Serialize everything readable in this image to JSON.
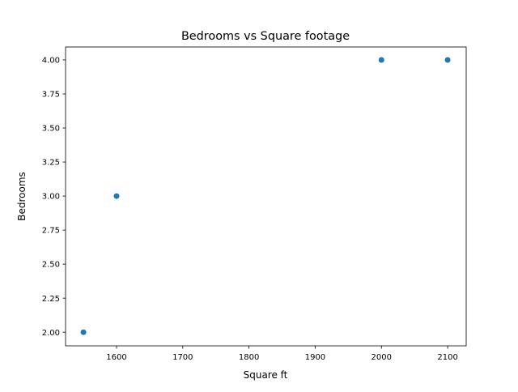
{
  "chart_data": {
    "type": "scatter",
    "title": "Bedrooms vs Square footage",
    "xlabel": "Square ft",
    "ylabel": "Bedrooms",
    "x": [
      1550,
      1600,
      2000,
      2100
    ],
    "y": [
      2,
      3,
      4,
      4
    ],
    "xlim": [
      1523,
      2128
    ],
    "ylim": [
      1.9,
      4.095
    ],
    "xticks": [
      1600,
      1700,
      1800,
      1900,
      2000,
      2100
    ],
    "xtick_labels": [
      "1600",
      "1700",
      "1800",
      "1900",
      "2000",
      "2100"
    ],
    "yticks": [
      2.0,
      2.25,
      2.5,
      2.75,
      3.0,
      3.25,
      3.5,
      3.75,
      4.0
    ],
    "ytick_labels": [
      "2.00",
      "2.25",
      "2.50",
      "2.75",
      "3.00",
      "3.25",
      "3.50",
      "3.75",
      "4.00"
    ],
    "grid": false,
    "marker_color": "#1f77b4"
  }
}
